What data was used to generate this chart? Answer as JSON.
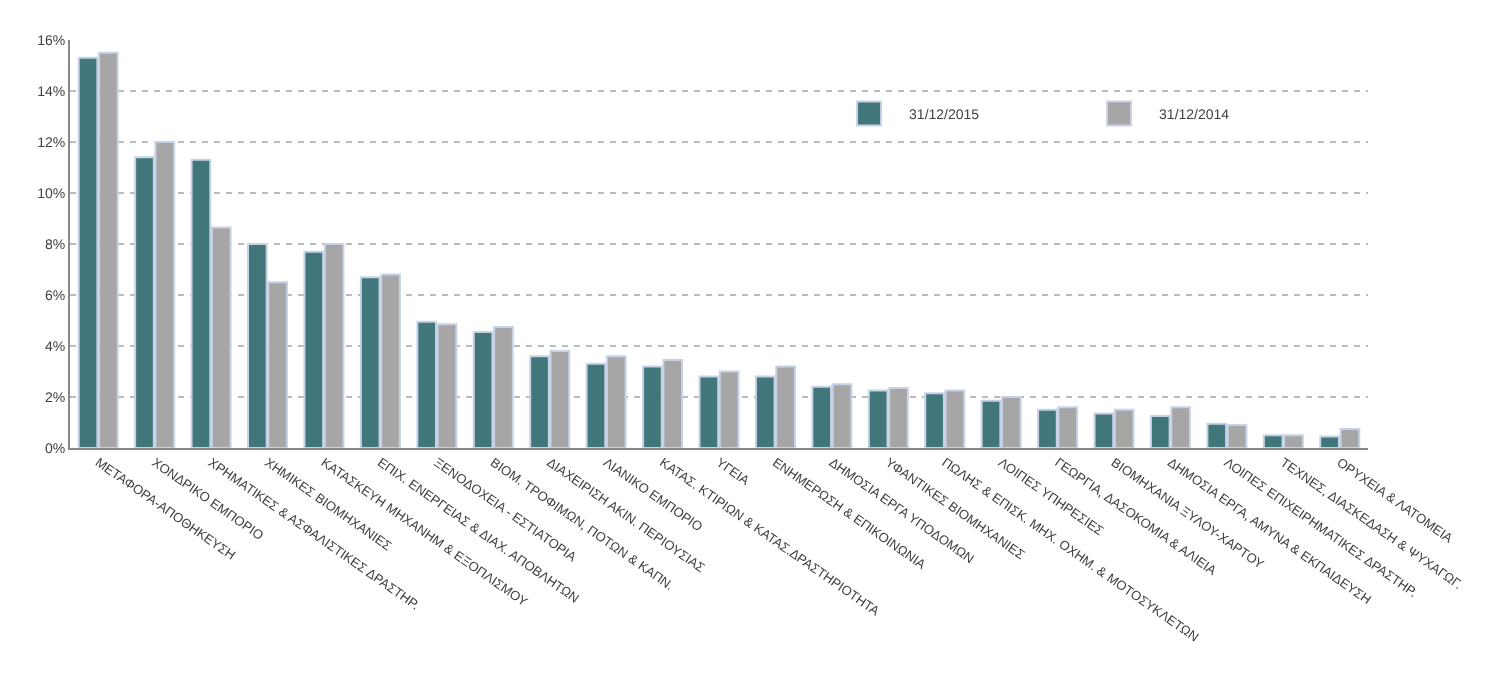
{
  "chart_data": {
    "type": "bar",
    "categories": [
      "ΜΕΤΑΦΟΡΑ-ΑΠΟΘΗΚΕΥΣΗ",
      "ΧΟΝΔΡΙΚΟ ΕΜΠΟΡΙΟ",
      "ΧΡΗΜΑΤΙΚΕΣ & ΑΣΦΑΛΙΣΤΙΚΕΣ ΔΡΑΣΤΗΡ.",
      "ΧΗΜΙΚΕΣ ΒΙΟΜΗΧΑΝΙΕΣ",
      "ΚΑΤΑΣΚΕΥΗ ΜΗΧΑΝΗΜ & ΕΞΟΠΛΙΣΜΟΥ",
      "ΕΠΙΧ. ΕΝΕΡΓΕΙΑΣ & ΔΙΑΧ. ΑΠΟΒΛΗΤΩΝ",
      "ΞΕΝΟΔΟΧΕΙΑ - ΕΣΤΙΑΤΟΡΙΑ",
      "ΒΙΟΜ. ΤΡΟΦΙΜΩΝ, ΠΟΤΩΝ & ΚΑΠΝ.",
      "ΔΙΑΧΕΙΡΙΣΗ ΑΚΙΝ. ΠΕΡΙΟΥΣΙΑΣ",
      "ΛΙΑΝΙΚΟ ΕΜΠΟΡΙΟ",
      "ΚΑΤΑΣ. ΚΤΙΡΙΩΝ & ΚΑΤΑΣ.ΔΡΑΣΤΗΡΙΟΤΗΤΑ",
      "ΥΓΕΙΑ",
      "ΕΝΗΜΕΡΩΣΗ & ΕΠΙΚΟΙΝΩΝΙΑ",
      "ΔΗΜΟΣΙΑ ΕΡΓΑ ΥΠΟΔΟΜΩΝ",
      "ΥΦΑΝΤΙΚΕΣ ΒΙΟΜΗΧΑΝΙΕΣ",
      "ΠΩΛΗΣ & ΕΠΙΣΚ. ΜΗΧ. ΟΧΗΜ. & ΜΟΤΟΣΥΚΛΕΤΩΝ",
      "ΛΟΙΠΕΣ ΥΠΗΡΕΣΙΕΣ",
      "ΓΕΩΡΓΙΑ, ΔΑΣΟΚΟΜΙΑ & ΑΛΙΕΙΑ",
      "ΒΙΟΜΗΧΑΝΙΑ ΞΥΛΟΥ-ΧΑΡΤΟΥ",
      "ΔΗΜΟΣΙΑ ΕΡΓΑ, ΑΜΥΝΑ & ΕΚΠΑΙΔΕΥΣΗ",
      "ΛΟΙΠΕΣ ΕΠΙΧΕΙΡΗΜΑΤΙΚΕΣ ΔΡΑΣΤΗΡ.",
      "ΤΕΧΝΕΣ, ΔΙΑΣΚΕΔΑΣΗ & ΨΥΧΑΓΩΓ.",
      "ΟΡΥΧΕΙΑ & ΛΑΤΟΜΕΙΑ"
    ],
    "series": [
      {
        "name": "31/12/2015",
        "color": "#41777a",
        "values": [
          15.3,
          11.4,
          11.3,
          8.0,
          7.7,
          6.7,
          4.95,
          4.55,
          3.6,
          3.3,
          3.2,
          2.8,
          2.8,
          2.4,
          2.25,
          2.15,
          1.85,
          1.5,
          1.35,
          1.25,
          0.95,
          0.5,
          0.45
        ]
      },
      {
        "name": "31/12/2014",
        "color": "#a6a6a6",
        "values": [
          15.5,
          12.0,
          8.65,
          6.5,
          8.0,
          6.8,
          4.85,
          4.75,
          3.8,
          3.6,
          3.45,
          3.0,
          3.2,
          2.5,
          2.35,
          2.25,
          2.0,
          1.6,
          1.5,
          1.6,
          0.9,
          0.5,
          0.75
        ]
      }
    ],
    "ylim": [
      0,
      16
    ],
    "yticks": [
      {
        "value": 0,
        "label": "0%"
      },
      {
        "value": 2,
        "label": "2%"
      },
      {
        "value": 4,
        "label": "4%"
      },
      {
        "value": 6,
        "label": "6%"
      },
      {
        "value": 8,
        "label": "8%"
      },
      {
        "value": 10,
        "label": "10%"
      },
      {
        "value": 12,
        "label": "12%"
      },
      {
        "value": 14,
        "label": "14%"
      },
      {
        "value": 16,
        "label": "16%"
      }
    ],
    "grid": "y",
    "legend": "top right"
  }
}
